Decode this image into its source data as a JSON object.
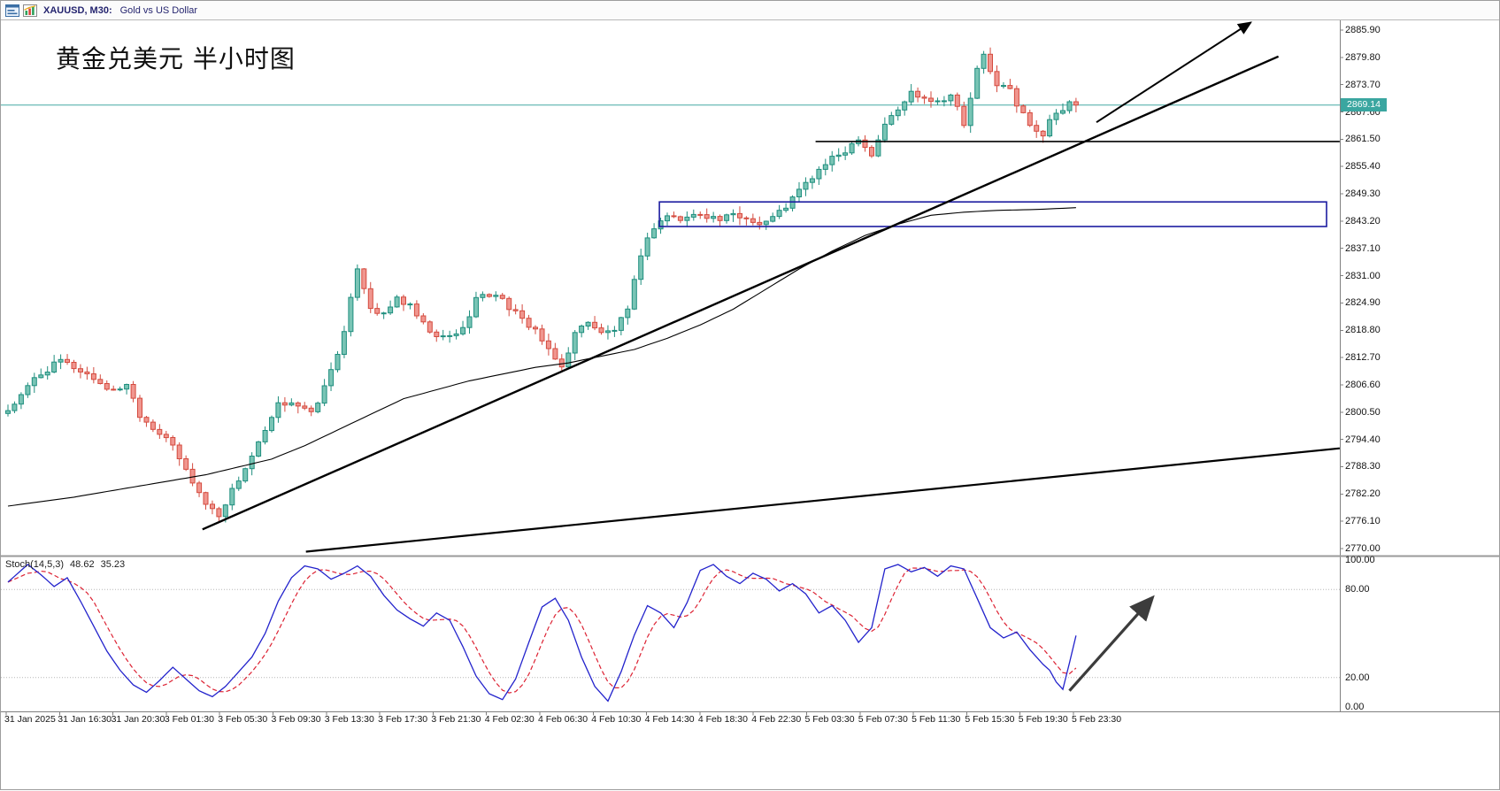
{
  "window": {
    "symbol_title": "XAUUSD, M30:",
    "description": "Gold vs US Dollar"
  },
  "annotation": {
    "text": "黄金兑美元 半小时图"
  },
  "colors": {
    "up": {
      "fill": "#79c4b5",
      "stroke": "#1e8e7e"
    },
    "down": {
      "fill": "#f0968f",
      "stroke": "#d44a3e"
    },
    "ma_line": "#000000",
    "trendline": "#000000",
    "rectangle": "#1c1ca0",
    "price_line": "#47a9a4",
    "badge_bg": "#3aa6a0",
    "stoch_main": "#2323cc",
    "stoch_signal": "#dd2233",
    "grid_dotted": "#b5b5b5",
    "axis": "#808080",
    "arrow": "#000000",
    "stoch_arrow": "#3c3c3c"
  },
  "chart_data": {
    "type": "candlestick",
    "symbol": "XAUUSD",
    "timeframe": "M30",
    "bars": 163,
    "current_price": "2869.14",
    "current_price_value": 2869.14,
    "price_axis": {
      "min": 2770.0,
      "max": 2885.9,
      "tick_step": 6.1,
      "labels": [
        "2885.90",
        "2879.80",
        "2873.70",
        "2867.60",
        "2861.50",
        "2855.40",
        "2849.30",
        "2843.20",
        "2837.10",
        "2831.00",
        "2824.90",
        "2818.80",
        "2812.70",
        "2806.60",
        "2800.50",
        "2794.40",
        "2788.30",
        "2782.20",
        "2776.10",
        "2770.00"
      ]
    },
    "time_axis": {
      "labels": [
        "31 Jan 2025",
        "31 Jan 16:30",
        "31 Jan 20:30",
        "3 Feb 01:30",
        "3 Feb 05:30",
        "3 Feb 09:30",
        "3 Feb 13:30",
        "3 Feb 17:30",
        "3 Feb 21:30",
        "4 Feb 02:30",
        "4 Feb 06:30",
        "4 Feb 10:30",
        "4 Feb 14:30",
        "4 Feb 18:30",
        "4 Feb 22:30",
        "5 Feb 03:30",
        "5 Feb 07:30",
        "5 Feb 11:30",
        "5 Feb 15:30",
        "5 Feb 19:30",
        "5 Feb 23:30"
      ]
    },
    "candles": {
      "close_anchors": [
        [
          0,
          2801
        ],
        [
          2,
          2804
        ],
        [
          4,
          2808
        ],
        [
          6,
          2810
        ],
        [
          8,
          2812
        ],
        [
          10,
          2810.5
        ],
        [
          12,
          2809
        ],
        [
          14,
          2807
        ],
        [
          16,
          2805
        ],
        [
          18,
          2807
        ],
        [
          20,
          2800
        ],
        [
          22,
          2797
        ],
        [
          24,
          2795
        ],
        [
          26,
          2790
        ],
        [
          28,
          2785
        ],
        [
          30,
          2780
        ],
        [
          32,
          2777.5
        ],
        [
          34,
          2783
        ],
        [
          36,
          2788
        ],
        [
          39,
          2796
        ],
        [
          41,
          2802
        ],
        [
          43,
          2803
        ],
        [
          46,
          2800
        ],
        [
          48,
          2806
        ],
        [
          51,
          2818
        ],
        [
          53,
          2833
        ],
        [
          55,
          2824
        ],
        [
          57,
          2822
        ],
        [
          59,
          2826
        ],
        [
          61,
          2824
        ],
        [
          63,
          2820
        ],
        [
          65,
          2817
        ],
        [
          67,
          2817.5
        ],
        [
          69,
          2819
        ],
        [
          71,
          2826
        ],
        [
          74,
          2827
        ],
        [
          76,
          2824
        ],
        [
          78,
          2821
        ],
        [
          80,
          2819
        ],
        [
          82,
          2814
        ],
        [
          84,
          2810.5
        ],
        [
          86,
          2818
        ],
        [
          88,
          2821
        ],
        [
          90,
          2818
        ],
        [
          92,
          2819
        ],
        [
          94,
          2823
        ],
        [
          96,
          2836
        ],
        [
          98,
          2842
        ],
        [
          100,
          2844.5
        ],
        [
          102,
          2843.5
        ],
        [
          105,
          2845
        ],
        [
          108,
          2843.5
        ],
        [
          110,
          2844.5
        ],
        [
          113,
          2843.5
        ],
        [
          114,
          2842.5
        ],
        [
          116,
          2844
        ],
        [
          118,
          2846.5
        ],
        [
          120,
          2850
        ],
        [
          122,
          2853
        ],
        [
          124,
          2856
        ],
        [
          126,
          2858
        ],
        [
          127,
          2859
        ],
        [
          129,
          2862
        ],
        [
          131,
          2858
        ],
        [
          133,
          2865
        ],
        [
          135,
          2868
        ],
        [
          137,
          2872
        ],
        [
          139,
          2871
        ],
        [
          141,
          2870
        ],
        [
          143,
          2871.5
        ],
        [
          144,
          2868.5
        ],
        [
          145,
          2864.5
        ],
        [
          147,
          2877
        ],
        [
          148,
          2880
        ],
        [
          149,
          2876.5
        ],
        [
          150,
          2874
        ],
        [
          152,
          2872.5
        ],
        [
          153,
          2869
        ],
        [
          154,
          2867
        ],
        [
          156,
          2863.5
        ],
        [
          157,
          2862.5
        ],
        [
          158,
          2865.5
        ],
        [
          160,
          2868
        ],
        [
          161,
          2869.5
        ],
        [
          162,
          2869.14
        ]
      ]
    },
    "ma_anchors": [
      [
        0,
        2779.5
      ],
      [
        10,
        2781.5
      ],
      [
        20,
        2784
      ],
      [
        30,
        2786.5
      ],
      [
        40,
        2790
      ],
      [
        45,
        2793
      ],
      [
        50,
        2796.5
      ],
      [
        55,
        2800
      ],
      [
        60,
        2803.5
      ],
      [
        65,
        2805.5
      ],
      [
        70,
        2807.5
      ],
      [
        75,
        2809
      ],
      [
        80,
        2810.5
      ],
      [
        85,
        2811.5
      ],
      [
        90,
        2813
      ],
      [
        95,
        2814.5
      ],
      [
        100,
        2817
      ],
      [
        105,
        2820
      ],
      [
        110,
        2823.5
      ],
      [
        115,
        2828
      ],
      [
        120,
        2832.5
      ],
      [
        125,
        2836.5
      ],
      [
        130,
        2840
      ],
      [
        135,
        2842.5
      ],
      [
        140,
        2844.5
      ],
      [
        145,
        2845.2
      ],
      [
        150,
        2845.6
      ],
      [
        156,
        2845.8
      ],
      [
        162,
        2846.2
      ]
    ],
    "overlays": {
      "trendline_steep": {
        "from": [
          29.5,
          2774.3
        ],
        "to": [
          192.7,
          2880.0
        ]
      },
      "trendline_shallow": {
        "from": [
          45.2,
          2769.3
        ],
        "to": [
          202.0,
          2792.4
        ]
      },
      "resistance_segment": {
        "price": 2861.0,
        "from_bar": 122.5,
        "to_bar": 202.0
      },
      "rectangle": {
        "from_bar": 98.8,
        "to_bar": 200.0,
        "price_top": 2847.5,
        "price_bottom": 2842.0
      },
      "arrow_up": {
        "from": [
          165.1,
          2865.3
        ],
        "to": [
          188.5,
          2887.6
        ]
      }
    },
    "stoch": {
      "label": "Stoch(14,5,3)",
      "main_value": "48.62",
      "signal_value": "35.23",
      "scale": [
        {
          "v": 100,
          "label": "100.00"
        },
        {
          "v": 80,
          "label": "80.00"
        },
        {
          "v": 20,
          "label": "20.00"
        },
        {
          "v": 0,
          "label": "0.00"
        }
      ],
      "levels": [
        80,
        20
      ],
      "main_anchors": [
        [
          0,
          85
        ],
        [
          2,
          93
        ],
        [
          3,
          97
        ],
        [
          5,
          90
        ],
        [
          7,
          82
        ],
        [
          9,
          88
        ],
        [
          11,
          72
        ],
        [
          13,
          55
        ],
        [
          15,
          38
        ],
        [
          17,
          25
        ],
        [
          19,
          15
        ],
        [
          21,
          10
        ],
        [
          23,
          18
        ],
        [
          25,
          27
        ],
        [
          27,
          19
        ],
        [
          29,
          11
        ],
        [
          31,
          7
        ],
        [
          33,
          14
        ],
        [
          35,
          24
        ],
        [
          37,
          34
        ],
        [
          39,
          50
        ],
        [
          41,
          72
        ],
        [
          43,
          88
        ],
        [
          45,
          96
        ],
        [
          47,
          94
        ],
        [
          49,
          87
        ],
        [
          51,
          91
        ],
        [
          53,
          96
        ],
        [
          55,
          89
        ],
        [
          57,
          76
        ],
        [
          59,
          66
        ],
        [
          61,
          60
        ],
        [
          63,
          55
        ],
        [
          65,
          64
        ],
        [
          67,
          59
        ],
        [
          69,
          41
        ],
        [
          71,
          21
        ],
        [
          73,
          9
        ],
        [
          75,
          5
        ],
        [
          77,
          19
        ],
        [
          79,
          44
        ],
        [
          81,
          68
        ],
        [
          83,
          74
        ],
        [
          85,
          59
        ],
        [
          87,
          34
        ],
        [
          89,
          14
        ],
        [
          91,
          4
        ],
        [
          93,
          24
        ],
        [
          95,
          49
        ],
        [
          97,
          69
        ],
        [
          99,
          64
        ],
        [
          101,
          54
        ],
        [
          103,
          71
        ],
        [
          105,
          93
        ],
        [
          107,
          97
        ],
        [
          109,
          89
        ],
        [
          111,
          84
        ],
        [
          113,
          91
        ],
        [
          115,
          87
        ],
        [
          117,
          79
        ],
        [
          119,
          84
        ],
        [
          121,
          77
        ],
        [
          123,
          64
        ],
        [
          125,
          69
        ],
        [
          127,
          59
        ],
        [
          129,
          44
        ],
        [
          131,
          54
        ],
        [
          133,
          94
        ],
        [
          135,
          97
        ],
        [
          137,
          92
        ],
        [
          139,
          95
        ],
        [
          141,
          89
        ],
        [
          143,
          96
        ],
        [
          145,
          94
        ],
        [
          147,
          74
        ],
        [
          149,
          54
        ],
        [
          151,
          47
        ],
        [
          153,
          51
        ],
        [
          155,
          39
        ],
        [
          157,
          29
        ],
        [
          158,
          25
        ],
        [
          159,
          17
        ],
        [
          160,
          12
        ],
        [
          161,
          30
        ],
        [
          162,
          48.62
        ]
      ],
      "arrow": {
        "from": [
          161.0,
          11
        ],
        "to": [
          173.5,
          74
        ]
      }
    }
  }
}
